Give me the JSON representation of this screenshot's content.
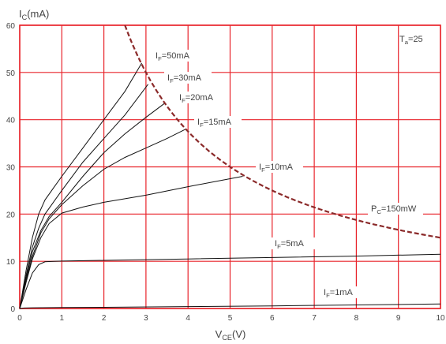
{
  "chart_data": {
    "type": "line",
    "title": "",
    "xlabel": {
      "main": "V",
      "sub": "CE",
      "unit": "(V)"
    },
    "ylabel": {
      "main": "I",
      "sub": "C",
      "unit": "(mA)"
    },
    "xlim": [
      0,
      10
    ],
    "ylim": [
      0,
      60
    ],
    "x_ticks": [
      "0",
      "1",
      "2",
      "3",
      "4",
      "5",
      "6",
      "7",
      "8",
      "9",
      "10"
    ],
    "y_ticks": [
      "0",
      "10",
      "20",
      "30",
      "40",
      "50",
      "60"
    ],
    "grid": true,
    "colors": {
      "grid": "#e8232a",
      "curve": "#111111",
      "power_curve": "#8b2a2a",
      "frame": "#e8232a"
    },
    "condition_label": {
      "main": "T",
      "sub": "a",
      "rest": "=25"
    },
    "series": [
      {
        "label": {
          "main": "I",
          "sub": "F",
          "rest": "=50mA"
        },
        "x": [
          0,
          0.15,
          0.3,
          0.45,
          0.6,
          0.8,
          1.0,
          1.5,
          2.0,
          2.5,
          2.9
        ],
        "y": [
          0,
          8,
          15,
          20,
          23,
          25.5,
          28,
          34,
          40,
          46,
          52
        ]
      },
      {
        "label": {
          "main": "I",
          "sub": "F",
          "rest": "=30mA"
        },
        "x": [
          0,
          0.15,
          0.3,
          0.45,
          0.6,
          0.8,
          1.0,
          1.5,
          2.0,
          2.5,
          3.05
        ],
        "y": [
          0,
          7,
          13,
          17,
          20,
          22.5,
          25,
          31,
          36,
          41,
          47.5
        ]
      },
      {
        "label": {
          "main": "I",
          "sub": "F",
          "rest": "=20mA"
        },
        "x": [
          0,
          0.15,
          0.3,
          0.5,
          0.7,
          1.0,
          1.5,
          2.0,
          2.5,
          3.0,
          3.45
        ],
        "y": [
          0,
          6.5,
          12,
          16.5,
          19.5,
          22.5,
          28,
          33,
          37,
          40.5,
          43.5
        ]
      },
      {
        "label": {
          "main": "I",
          "sub": "F",
          "rest": "=15mA"
        },
        "x": [
          0,
          0.15,
          0.3,
          0.5,
          0.7,
          1.0,
          1.5,
          2.0,
          2.5,
          3.0,
          3.5,
          3.95
        ],
        "y": [
          0,
          6,
          11,
          16,
          19,
          22,
          26,
          29.5,
          32,
          34,
          36,
          38
        ]
      },
      {
        "label": {
          "main": "I",
          "sub": "F",
          "rest": "=10mA"
        },
        "x": [
          0,
          0.15,
          0.3,
          0.5,
          0.7,
          1.0,
          1.5,
          2.0,
          3.0,
          4.0,
          5.0,
          5.3
        ],
        "y": [
          0,
          5.5,
          10.5,
          15,
          18,
          20.2,
          21.5,
          22.5,
          24,
          25.8,
          27.5,
          28
        ]
      },
      {
        "label": {
          "main": "I",
          "sub": "F",
          "rest": "=5mA"
        },
        "x": [
          0,
          0.15,
          0.3,
          0.45,
          0.6,
          0.8,
          1.0,
          2.0,
          4.0,
          6.0,
          8.0,
          10.0
        ],
        "y": [
          0,
          4,
          7.5,
          9.3,
          9.9,
          10.0,
          10.05,
          10.2,
          10.5,
          10.8,
          11.1,
          11.5
        ]
      },
      {
        "label": {
          "main": "I",
          "sub": "F",
          "rest": "=1mA"
        },
        "x": [
          0,
          0.1,
          0.3,
          1.0,
          2.0,
          4.0,
          6.0,
          8.0,
          10.0
        ],
        "y": [
          0,
          0.1,
          0.15,
          0.2,
          0.25,
          0.4,
          0.55,
          0.75,
          0.95
        ]
      }
    ],
    "power_limit": {
      "label": {
        "main": "P",
        "sub": "C",
        "rest": "=150mW"
      },
      "power_mW": 150,
      "x_range": [
        2.5,
        10
      ]
    }
  }
}
